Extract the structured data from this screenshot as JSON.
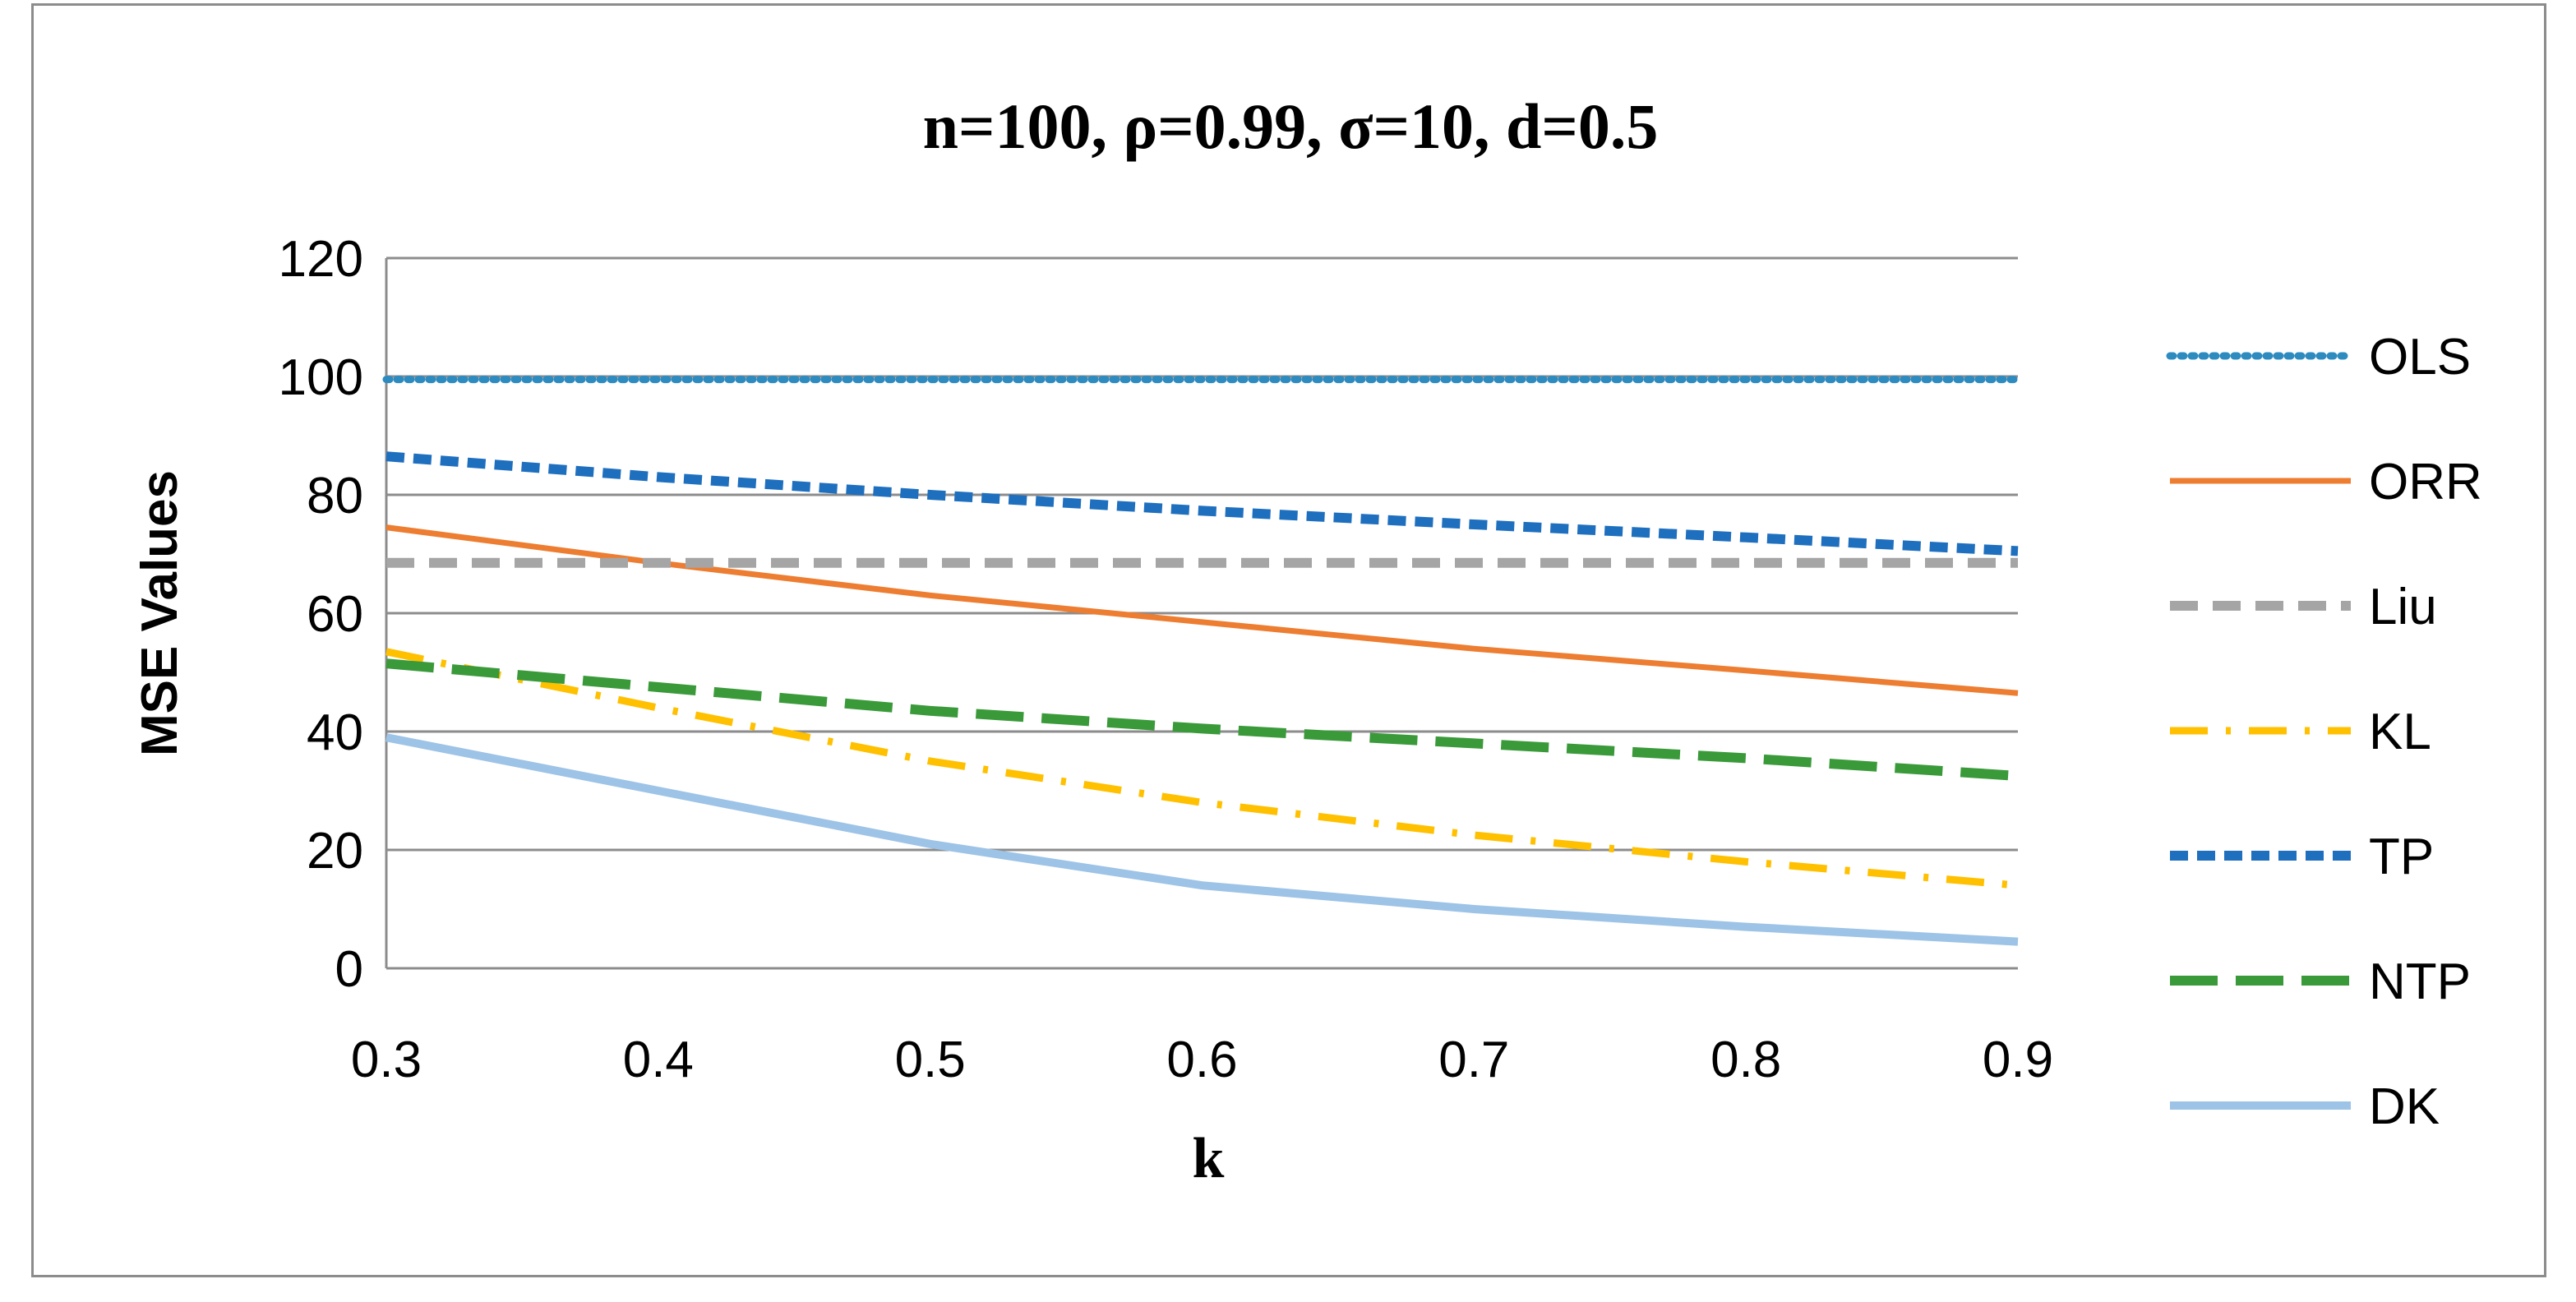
{
  "chart_data": {
    "type": "line",
    "title": "n=100, ρ=0.99, σ=10, d=0.5",
    "xlabel": "k",
    "ylabel": "MSE Values",
    "x": [
      0.3,
      0.4,
      0.5,
      0.6,
      0.7,
      0.8,
      0.9
    ],
    "x_tick_labels": [
      "0.3",
      "0.4",
      "0.5",
      "0.6",
      "0.7",
      "0.8",
      "0.9"
    ],
    "xlim": [
      0.3,
      0.9
    ],
    "ylim": [
      0,
      120
    ],
    "y_ticks": [
      0,
      20,
      40,
      60,
      80,
      100,
      120
    ],
    "grid": true,
    "legend_position": "right",
    "series": [
      {
        "name": "OLS",
        "color": "#2E8BC0",
        "dash": "dotted",
        "values": [
          99.5,
          99.5,
          99.5,
          99.5,
          99.5,
          99.5,
          99.5
        ]
      },
      {
        "name": "ORR",
        "color": "#ED7D31",
        "dash": "solid",
        "values": [
          74.5,
          68.5,
          63,
          58.5,
          54,
          50.3,
          46.5
        ]
      },
      {
        "name": "Liu",
        "color": "#A5A5A5",
        "dash": "dashed",
        "values": [
          68.5,
          68.5,
          68.5,
          68.5,
          68.5,
          68.5,
          68.5
        ]
      },
      {
        "name": "KL",
        "color": "#FFC000",
        "dash": "dashdot",
        "values": [
          53.5,
          44,
          35,
          28,
          22.5,
          18,
          14
        ]
      },
      {
        "name": "TP",
        "color": "#1F6FBF",
        "dash": "shortdash",
        "values": [
          86.5,
          83,
          80,
          77.3,
          75,
          72.8,
          70.5
        ]
      },
      {
        "name": "NTP",
        "color": "#3A9A3A",
        "dash": "longdash",
        "values": [
          51.5,
          47.5,
          43.5,
          40.5,
          38,
          35.5,
          32.5
        ]
      },
      {
        "name": "DK",
        "color": "#9DC3E6",
        "dash": "solid",
        "values": [
          39,
          30,
          21,
          14,
          10,
          7,
          4.5
        ]
      }
    ]
  }
}
